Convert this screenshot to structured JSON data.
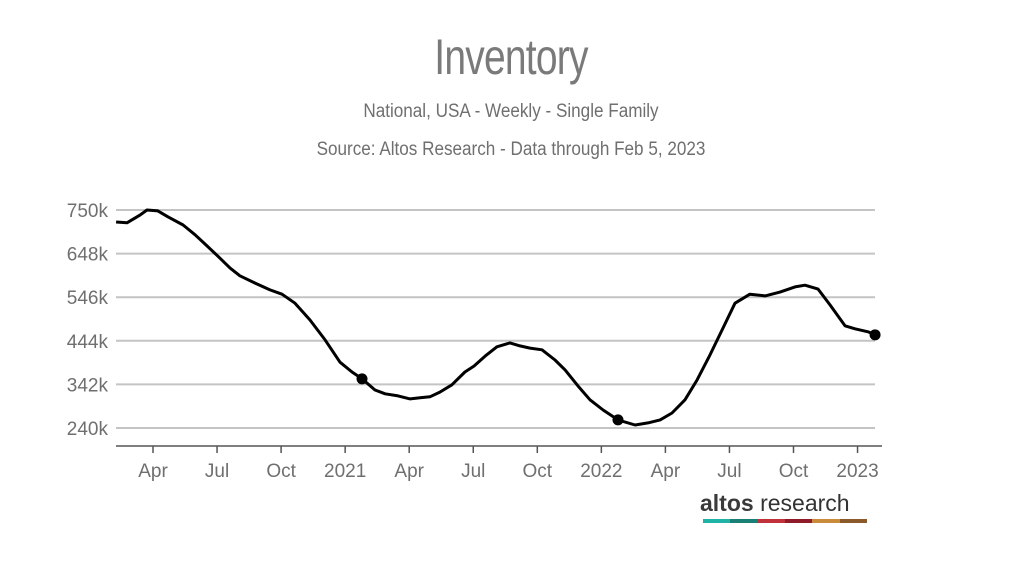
{
  "chart_data": {
    "type": "line",
    "title": "Inventory",
    "subtitle": "National, USA - Weekly - Single Family",
    "source": "Source: Altos Research - Data through Feb 5, 2023",
    "xlabel": "",
    "ylabel": "",
    "x_unit": "months since Jan 2020",
    "xlim": [
      1.27,
      37.1
    ],
    "ylim": [
      215,
      760
    ],
    "y_ticks": [
      {
        "value": 240,
        "label": "240k"
      },
      {
        "value": 342,
        "label": "342k"
      },
      {
        "value": 444,
        "label": "444k"
      },
      {
        "value": 546,
        "label": "546k"
      },
      {
        "value": 648,
        "label": "648k"
      },
      {
        "value": 750,
        "label": "750k"
      }
    ],
    "x_ticks": [
      {
        "value": 3,
        "label": "Apr"
      },
      {
        "value": 6,
        "label": "Jul"
      },
      {
        "value": 9,
        "label": "Oct"
      },
      {
        "value": 12,
        "label": "2021"
      },
      {
        "value": 15,
        "label": "Apr"
      },
      {
        "value": 18,
        "label": "Jul"
      },
      {
        "value": 21,
        "label": "Oct"
      },
      {
        "value": 24,
        "label": "2022"
      },
      {
        "value": 27,
        "label": "Apr"
      },
      {
        "value": 30,
        "label": "Jul"
      },
      {
        "value": 33,
        "label": "Oct"
      },
      {
        "value": 36,
        "label": "2023"
      }
    ],
    "grid": true,
    "series": [
      {
        "name": "Inventory",
        "color": "#000000",
        "x": [
          1.27,
          1.78,
          2.39,
          2.72,
          3.23,
          3.7,
          4.41,
          4.97,
          5.53,
          6.04,
          6.61,
          7.07,
          7.78,
          8.48,
          9.04,
          9.65,
          10.35,
          11.06,
          11.76,
          12.32,
          12.79,
          13.4,
          13.87,
          14.48,
          15.04,
          15.51,
          15.97,
          16.44,
          17.0,
          17.61,
          18.04,
          18.55,
          19.11,
          19.72,
          20.19,
          20.66,
          21.22,
          21.83,
          22.3,
          22.91,
          23.47,
          24.08,
          24.78,
          25.58,
          26.18,
          26.75,
          27.31,
          27.92,
          28.48,
          29.09,
          29.65,
          30.26,
          30.96,
          31.67,
          32.37,
          33.07,
          33.54,
          34.15,
          34.71,
          35.41,
          35.88,
          36.49,
          36.82
        ],
        "y": [
          722,
          720,
          738,
          750,
          748,
          734,
          715,
          692,
          666,
          642,
          614,
          596,
          579,
          563,
          553,
          532,
          493,
          446,
          394,
          371,
          355,
          329,
          320,
          315,
          308,
          311,
          313,
          324,
          341,
          371,
          385,
          408,
          430,
          439,
          432,
          427,
          423,
          399,
          376,
          338,
          306,
          282,
          259,
          247,
          252,
          259,
          275,
          306,
          352,
          411,
          469,
          532,
          553,
          549,
          558,
          570,
          574,
          565,
          528,
          479,
          472,
          465,
          458
        ],
        "markers_at_x": [
          12.79,
          24.78,
          36.82
        ]
      }
    ]
  },
  "branding": {
    "logo_bold": "altos",
    "logo_light": "research",
    "logo_colors": [
      "#1fb3a5",
      "#1a7f74",
      "#c0313a",
      "#8e1a2a",
      "#c98a3a",
      "#8a5a2b"
    ]
  }
}
